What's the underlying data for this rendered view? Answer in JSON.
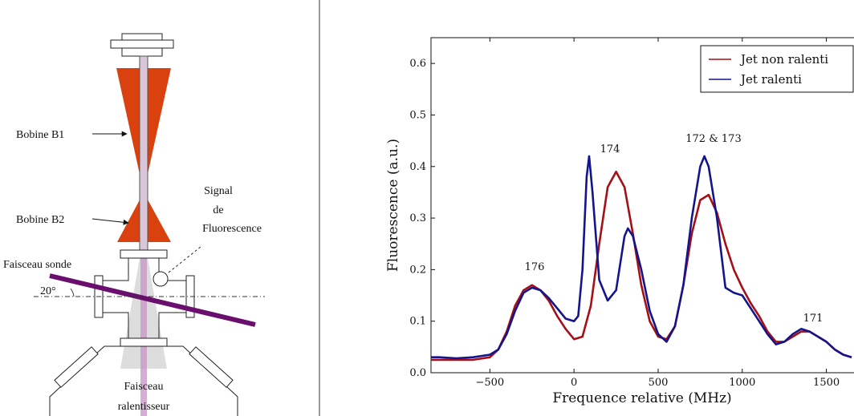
{
  "diagram": {
    "labels": [
      "Bobine B1",
      "Bobine B2",
      "Signal",
      "de",
      "Fluorescence",
      "Faisceau sonde",
      "20°",
      "Faisceau",
      "ralentisseur"
    ]
  },
  "chart_data": {
    "type": "line",
    "xlabel": "Frequence relative (MHz)",
    "ylabel": "Fluorescence (a.u.)",
    "xlim": [
      -850,
      1750
    ],
    "ylim": [
      0,
      0.65
    ],
    "xticks": [
      {
        "value": -500,
        "label": "−500"
      },
      0,
      500,
      1000,
      1500
    ],
    "yticks": [
      {
        "value": 0,
        "label": "0.0"
      },
      0.1,
      0.2,
      0.3,
      0.4,
      0.5,
      0.6
    ],
    "legend": "upper right",
    "annotations": [
      "176",
      "174",
      "172 & 173",
      "171"
    ],
    "series": [
      {
        "name": "Jet non ralenti",
        "color": "#a50f15",
        "x": [
          -850,
          -800,
          -700,
          -600,
          -500,
          -450,
          -400,
          -350,
          -300,
          -250,
          -200,
          -150,
          -100,
          -50,
          0,
          50,
          100,
          150,
          200,
          250,
          300,
          350,
          400,
          450,
          500,
          550,
          600,
          650,
          700,
          750,
          800,
          850,
          900,
          950,
          1000,
          1050,
          1100,
          1150,
          1200,
          1250,
          1300,
          1350,
          1400,
          1450,
          1500,
          1550,
          1600,
          1650
        ],
        "values": [
          0.025,
          0.025,
          0.025,
          0.025,
          0.03,
          0.045,
          0.08,
          0.13,
          0.16,
          0.17,
          0.16,
          0.14,
          0.11,
          0.085,
          0.065,
          0.07,
          0.13,
          0.25,
          0.36,
          0.39,
          0.36,
          0.27,
          0.17,
          0.1,
          0.07,
          0.065,
          0.09,
          0.17,
          0.27,
          0.335,
          0.345,
          0.31,
          0.25,
          0.2,
          0.165,
          0.135,
          0.11,
          0.08,
          0.06,
          0.06,
          0.07,
          0.08,
          0.08,
          0.07,
          0.06,
          0.045,
          0.035,
          0.03
        ]
      },
      {
        "name": "Jet ralenti",
        "color": "#14148c",
        "x": [
          -850,
          -800,
          -700,
          -600,
          -500,
          -450,
          -400,
          -350,
          -300,
          -250,
          -200,
          -150,
          -100,
          -50,
          0,
          25,
          50,
          75,
          90,
          110,
          150,
          200,
          250,
          300,
          320,
          350,
          400,
          450,
          500,
          550,
          600,
          650,
          700,
          750,
          775,
          800,
          850,
          900,
          950,
          1000,
          1050,
          1100,
          1150,
          1200,
          1250,
          1300,
          1350,
          1400,
          1450,
          1500,
          1550,
          1600,
          1650
        ],
        "values": [
          0.03,
          0.03,
          0.028,
          0.03,
          0.035,
          0.045,
          0.075,
          0.12,
          0.155,
          0.165,
          0.16,
          0.145,
          0.125,
          0.105,
          0.1,
          0.11,
          0.2,
          0.38,
          0.42,
          0.35,
          0.18,
          0.14,
          0.16,
          0.265,
          0.28,
          0.265,
          0.2,
          0.12,
          0.075,
          0.06,
          0.09,
          0.17,
          0.3,
          0.4,
          0.42,
          0.4,
          0.3,
          0.165,
          0.155,
          0.15,
          0.125,
          0.1,
          0.075,
          0.055,
          0.06,
          0.075,
          0.085,
          0.08,
          0.07,
          0.06,
          0.045,
          0.035,
          0.03
        ]
      }
    ]
  }
}
